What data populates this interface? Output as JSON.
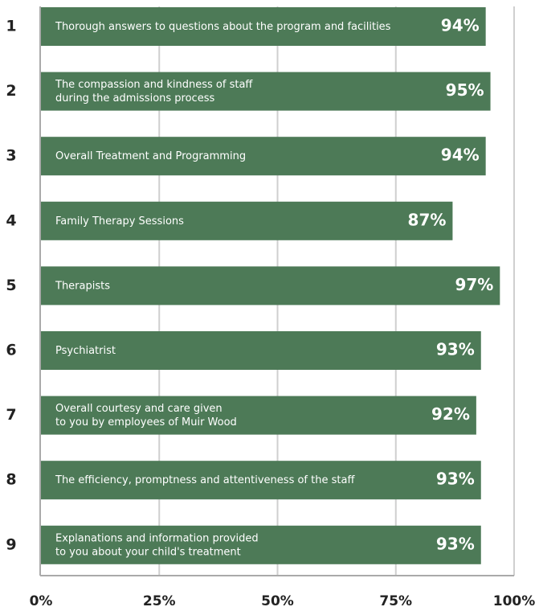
{
  "chart_data": {
    "type": "hbar",
    "ranks": [
      1,
      2,
      3,
      4,
      5,
      6,
      7,
      8,
      9
    ],
    "categories": [
      [
        "Thorough answers to questions about the program and facilities"
      ],
      [
        "The compassion and kindness of staff",
        "during the admissions process"
      ],
      [
        "Overall Treatment and Programming"
      ],
      [
        "Family Therapy Sessions"
      ],
      [
        "Therapists"
      ],
      [
        "Psychiatrist"
      ],
      [
        "Overall courtesy and care given",
        "to you by employees of Muir Wood"
      ],
      [
        "The efficiency, promptness and attentiveness of the staff"
      ],
      [
        "Explanations and information provided",
        "to you about your child's treatment"
      ]
    ],
    "values": [
      94,
      95,
      94,
      87,
      97,
      93,
      92,
      93,
      93
    ],
    "value_labels": [
      "94%",
      "95%",
      "94%",
      "87%",
      "97%",
      "93%",
      "92%",
      "93%",
      "93%"
    ],
    "color": "#4d7a57",
    "xlim": [
      0,
      100
    ],
    "xticks": [
      {
        "value": 0,
        "label": "0%"
      },
      {
        "value": 25,
        "label": "25%"
      },
      {
        "value": 50,
        "label": "50%"
      },
      {
        "value": 75,
        "label": "75%"
      },
      {
        "value": 100,
        "label": "100%"
      }
    ],
    "grid": true
  }
}
